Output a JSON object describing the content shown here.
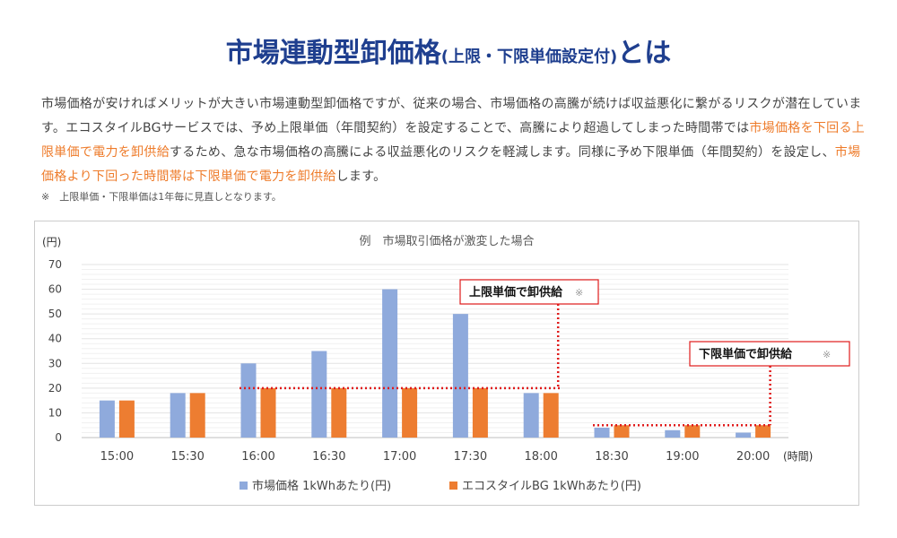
{
  "heading": {
    "main": "市場連動型卸価格",
    "sub": "(上限・下限単価設定付)",
    "suffix": "とは"
  },
  "intro": [
    {
      "text": "市場価格が安ければメリットが大きい市場連動型卸価格ですが、従来の場合、市場価格の高騰が続けば収益悪化に繋がるリスクが潜在しています。エコスタイルBGサービスでは、予め上限単価（年間契約）を設定することで、高騰により超過してしまった時間帯では",
      "hl": false
    },
    {
      "text": "市場価格を下回る上限単価で電力を卸供給",
      "hl": true
    },
    {
      "text": "するため、急な市場価格の高騰による収益悪化のリスクを軽減します。同様に予め下限単価（年間契約）を設定し、",
      "hl": false
    },
    {
      "text": "市場価格より下回った時間帯は下限単価で電力を卸供給",
      "hl": true
    },
    {
      "text": "します。",
      "hl": false
    }
  ],
  "note": "※　上限単価・下限単価は1年毎に見直しとなります。",
  "colors": {
    "heading": "#1f3f8f",
    "highlight": "#ee7b2a",
    "market": "#8faadc",
    "eco": "#ed7d31",
    "annotation": "#e01b1b"
  },
  "chart_data": {
    "type": "bar",
    "title": "例　市場取引価格が激変した場合",
    "ylabel": "(円)",
    "xlabel": "(時間)",
    "ylim": [
      0,
      70
    ],
    "yticks": [
      0,
      10,
      20,
      30,
      40,
      50,
      60,
      70
    ],
    "categories": [
      "15:00",
      "15:30",
      "16:00",
      "16:30",
      "17:00",
      "17:30",
      "18:00",
      "18:30",
      "19:00",
      "20:00"
    ],
    "series": [
      {
        "name": "市場価格 1kWhあたり(円)",
        "values": [
          15,
          18,
          30,
          35,
          60,
          50,
          18,
          4,
          3,
          2
        ]
      },
      {
        "name": "エコスタイルBG 1kWhあたり(円)",
        "values": [
          15,
          18,
          20,
          20,
          20,
          20,
          18,
          5,
          5,
          5
        ]
      }
    ],
    "grid": true,
    "legend": "bottom",
    "annotations": [
      {
        "text": "上限単価で卸供給",
        "mark": "※",
        "level": 20,
        "from": "16:00",
        "to": "18:00"
      },
      {
        "text": "下限単価で卸供給",
        "mark": "※",
        "level": 5,
        "from": "18:30",
        "to": "20:00"
      }
    ]
  }
}
